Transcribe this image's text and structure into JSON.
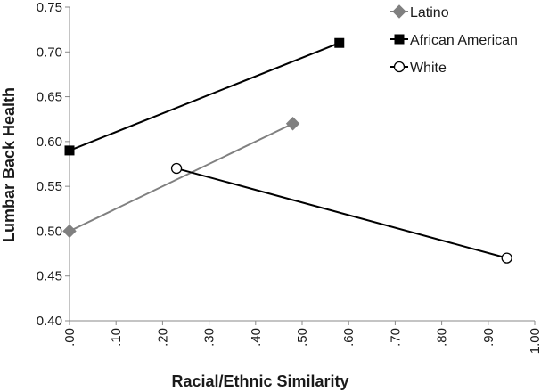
{
  "chart_data": {
    "type": "line",
    "title": "",
    "xlabel": "Racial/Ethnic Similarity",
    "ylabel": "Lumbar Back Health",
    "xlim": [
      0,
      1
    ],
    "ylim": [
      0.4,
      0.75
    ],
    "x_ticks": [
      ".00",
      ".10",
      ".20",
      ".30",
      ".40",
      ".50",
      ".60",
      ".70",
      ".80",
      ".90",
      "1.00"
    ],
    "y_ticks": [
      "0.40",
      "0.45",
      "0.50",
      "0.55",
      "0.60",
      "0.65",
      "0.70",
      "0.75"
    ],
    "legend_position": "top-right",
    "grid": false,
    "series": [
      {
        "name": "Latino",
        "color": "#808080",
        "marker": "diamond",
        "points": [
          {
            "x": 0.0,
            "y": 0.5
          },
          {
            "x": 0.48,
            "y": 0.62
          }
        ]
      },
      {
        "name": "African American",
        "color": "#000000",
        "marker": "square",
        "points": [
          {
            "x": 0.0,
            "y": 0.59
          },
          {
            "x": 0.58,
            "y": 0.71
          }
        ]
      },
      {
        "name": "White",
        "color": "#000000",
        "marker": "circle-open",
        "points": [
          {
            "x": 0.23,
            "y": 0.57
          },
          {
            "x": 0.94,
            "y": 0.47
          }
        ]
      }
    ]
  }
}
